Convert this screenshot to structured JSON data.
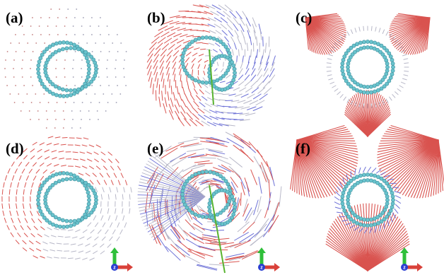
{
  "figure": {
    "panels": [
      {
        "id": "a",
        "label": "(a)",
        "field": "sparse-dots",
        "has_axes": false
      },
      {
        "id": "b",
        "label": "(b)",
        "field": "swirl-arrows",
        "has_axes": false
      },
      {
        "id": "c",
        "label": "(c)",
        "field": "triangle-fan",
        "has_axes": false
      },
      {
        "id": "d",
        "label": "(d)",
        "field": "circular-arrows",
        "has_axes": false
      },
      {
        "id": "e",
        "label": "(e)",
        "field": "dense-swirl",
        "has_axes": true
      },
      {
        "id": "f",
        "label": "(f)",
        "field": "dense-fan",
        "has_axes": true
      }
    ],
    "axes_triad": {
      "center_letter": "z"
    },
    "colors": {
      "red": "#d9534f",
      "blue": "#6b6fd6",
      "gray": "#b8b8c8",
      "molecule": "#69c3cd",
      "molecule_dark": "#3f8f9c",
      "axis_green": "#2fbf3a",
      "axis_red": "#d9413a",
      "axis_blue": "#2b3fd1",
      "green_rod": "#58b32f"
    }
  }
}
